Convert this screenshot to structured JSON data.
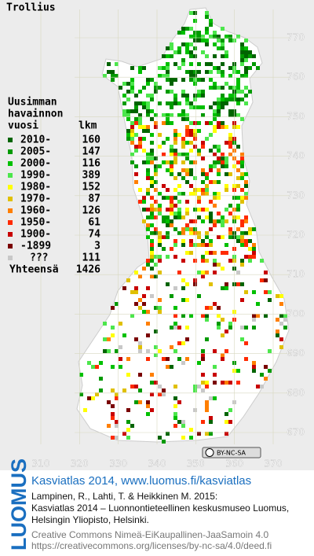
{
  "title": "Trollius",
  "legend": {
    "header": [
      "Uusimman",
      "havainnon",
      "vuosi"
    ],
    "count_header": "lkm",
    "entries": [
      {
        "label": "2010-",
        "count": 160,
        "color": "#006400"
      },
      {
        "label": "2005-",
        "count": 147,
        "color": "#009a00"
      },
      {
        "label": "2000-",
        "count": 116,
        "color": "#00c000"
      },
      {
        "label": "1990-",
        "count": 389,
        "color": "#4ce64c"
      },
      {
        "label": "1980-",
        "count": 152,
        "color": "#ffff00"
      },
      {
        "label": "1970-",
        "count": 87,
        "color": "#e0c000"
      },
      {
        "label": "1960-",
        "count": 126,
        "color": "#ff7f00"
      },
      {
        "label": "1950-",
        "count": 61,
        "color": "#ff2a00"
      },
      {
        "label": "1900-",
        "count": 74,
        "color": "#c80000"
      },
      {
        "label": "-1899",
        "count": 3,
        "color": "#7a0000"
      },
      {
        "label": "???",
        "count": 111,
        "color": "#c8c8c8"
      }
    ],
    "total_label": "Yhteensä",
    "total": 1426
  },
  "map": {
    "yticks": [
      770,
      760,
      750,
      740,
      730,
      720,
      710,
      700,
      690,
      680,
      670
    ],
    "xticks": [
      310,
      320,
      330,
      340,
      350,
      360,
      370
    ]
  },
  "license_badge": "BY-NC-SA",
  "footer": {
    "logo": "LUOMUS",
    "headline": "Kasviatlas 2014, www.luomus.fi/kasviatlas",
    "citation": [
      "Lampinen, R., Lahti, T. & Heikkinen M. 2015:",
      "Kasviatlas 2014 – Luonnontieteellinen keskusmuseo Luomus,",
      "Helsingin Yliopisto, Helsinki."
    ],
    "license": [
      "Creative Commons Nimeä-EiKaupallinen-JaaSamoin 4.0",
      "https://creativecommons.org/licenses/by-nc-sa/4.0/deed.fi"
    ]
  }
}
